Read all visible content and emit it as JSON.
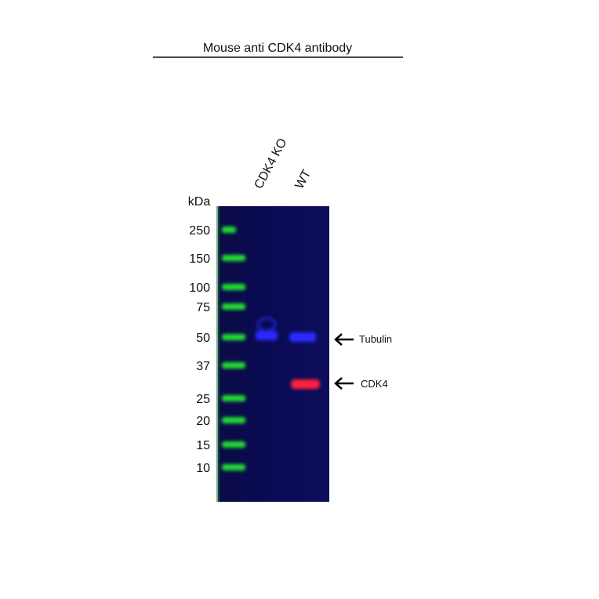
{
  "header": {
    "title": "Mouse anti  CDK4 antibody"
  },
  "lanes": [
    "CDK4 KO",
    "WT"
  ],
  "marker_unit": "kDa",
  "markers": [
    250,
    150,
    100,
    75,
    50,
    37,
    25,
    20,
    15,
    10
  ],
  "bands": [
    {
      "label": "Tubulin"
    },
    {
      "label": "CDK4"
    }
  ]
}
